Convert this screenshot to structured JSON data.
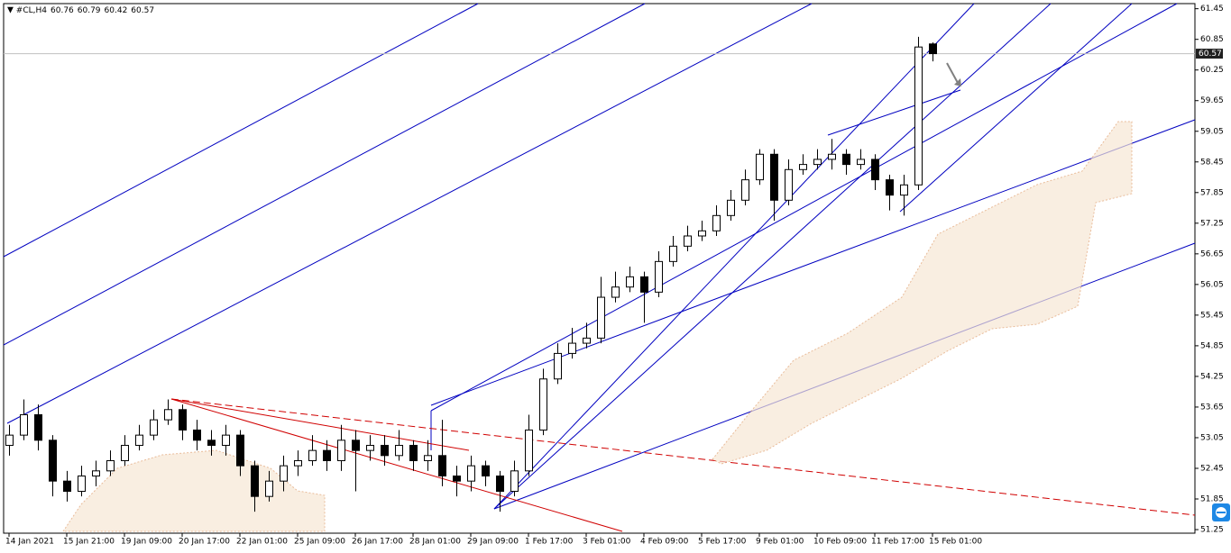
{
  "chart_data": {
    "type": "candlestick",
    "title": "#CL,H4",
    "header_ohlc": [
      60.76,
      60.79,
      60.42,
      60.57
    ],
    "current_price": 60.57,
    "categories": [
      "14 Jan 2021",
      null,
      null,
      null,
      "15 Jan 21:00",
      null,
      null,
      null,
      "19 Jan 09:00",
      null,
      null,
      null,
      "20 Jan 17:00",
      null,
      null,
      null,
      "22 Jan 01:00",
      null,
      null,
      null,
      "25 Jan 09:00",
      null,
      null,
      null,
      "26 Jan 17:00",
      null,
      null,
      null,
      "28 Jan 01:00",
      null,
      null,
      null,
      "29 Jan 09:00",
      null,
      null,
      null,
      "1 Feb 17:00",
      null,
      null,
      null,
      "3 Feb 01:00",
      null,
      null,
      null,
      "4 Feb 09:00",
      null,
      null,
      null,
      "5 Feb 17:00",
      null,
      null,
      null,
      "9 Feb 01:00",
      null,
      null,
      null,
      "10 Feb 09:00",
      null,
      null,
      null,
      "11 Feb 17:00",
      null,
      null,
      null,
      "15 Feb 01:00"
    ],
    "open": [
      52.9,
      53.1,
      53.5,
      53.0,
      52.2,
      52.0,
      52.3,
      52.4,
      52.6,
      52.9,
      53.1,
      53.4,
      53.6,
      53.2,
      53.0,
      52.9,
      53.1,
      52.5,
      51.9,
      52.2,
      52.5,
      52.6,
      52.8,
      52.6,
      53.0,
      52.8,
      52.9,
      52.7,
      52.9,
      52.6,
      52.7,
      52.3,
      52.2,
      52.5,
      52.3,
      52.0,
      52.4,
      53.2,
      54.2,
      54.7,
      54.9,
      55.0,
      55.8,
      56.0,
      56.2,
      55.9,
      56.5,
      56.8,
      57.0,
      57.1,
      57.4,
      57.7,
      58.1,
      58.6,
      57.7,
      58.3,
      58.4,
      58.5,
      58.6,
      58.4,
      58.5,
      58.1,
      57.8,
      58.0,
      60.76
    ],
    "high": [
      53.3,
      53.8,
      53.7,
      53.1,
      52.4,
      52.5,
      52.6,
      52.8,
      53.1,
      53.3,
      53.6,
      53.8,
      53.7,
      53.4,
      53.2,
      53.3,
      53.2,
      52.6,
      52.4,
      52.7,
      52.8,
      53.1,
      53.0,
      53.3,
      53.2,
      53.1,
      53.1,
      53.2,
      53.0,
      53.0,
      53.4,
      52.5,
      52.7,
      52.6,
      52.4,
      52.6,
      53.5,
      54.4,
      54.9,
      55.2,
      55.3,
      56.2,
      56.3,
      56.4,
      56.3,
      56.7,
      57.0,
      57.2,
      57.3,
      57.6,
      57.9,
      58.3,
      58.7,
      58.7,
      58.5,
      58.6,
      58.7,
      58.9,
      58.7,
      58.7,
      58.6,
      58.2,
      58.2,
      60.9,
      60.79
    ],
    "low": [
      52.7,
      53.0,
      52.8,
      51.9,
      51.8,
      51.9,
      52.1,
      52.3,
      52.5,
      52.8,
      53.0,
      53.3,
      53.0,
      52.8,
      52.7,
      52.7,
      52.3,
      51.6,
      51.8,
      52.0,
      52.3,
      52.5,
      52.4,
      52.4,
      52.0,
      52.6,
      52.5,
      52.6,
      52.4,
      52.4,
      52.1,
      51.9,
      52.0,
      52.1,
      51.6,
      51.9,
      52.3,
      53.1,
      54.1,
      54.6,
      54.8,
      54.9,
      55.7,
      55.9,
      55.3,
      55.8,
      56.4,
      56.7,
      56.9,
      57.0,
      57.3,
      57.6,
      58.0,
      57.3,
      57.6,
      58.2,
      58.3,
      58.3,
      58.2,
      58.3,
      57.9,
      57.5,
      57.4,
      57.9,
      60.42
    ],
    "close": [
      53.1,
      53.5,
      53.0,
      52.2,
      52.0,
      52.3,
      52.4,
      52.6,
      52.9,
      53.1,
      53.4,
      53.6,
      53.2,
      53.0,
      52.9,
      53.1,
      52.5,
      51.9,
      52.2,
      52.5,
      52.6,
      52.8,
      52.6,
      53.0,
      52.8,
      52.9,
      52.7,
      52.9,
      52.6,
      52.7,
      52.3,
      52.2,
      52.5,
      52.3,
      52.0,
      52.4,
      53.2,
      54.2,
      54.7,
      54.9,
      55.0,
      55.8,
      56.0,
      56.2,
      55.9,
      56.5,
      56.8,
      57.0,
      57.1,
      57.4,
      57.7,
      58.1,
      58.6,
      57.7,
      58.3,
      58.4,
      58.5,
      58.6,
      58.4,
      58.5,
      58.1,
      57.8,
      58.0,
      60.7,
      60.57
    ],
    "ylim": [
      51.18,
      61.55
    ],
    "yticks": [
      51.25,
      51.85,
      52.45,
      53.05,
      53.65,
      54.25,
      54.85,
      55.45,
      56.05,
      56.65,
      57.25,
      57.85,
      58.45,
      59.05,
      59.65,
      60.25,
      60.85,
      61.45
    ],
    "up_color": "#ffffff",
    "down_color": "#000000",
    "outline_color": "#000000"
  }
}
